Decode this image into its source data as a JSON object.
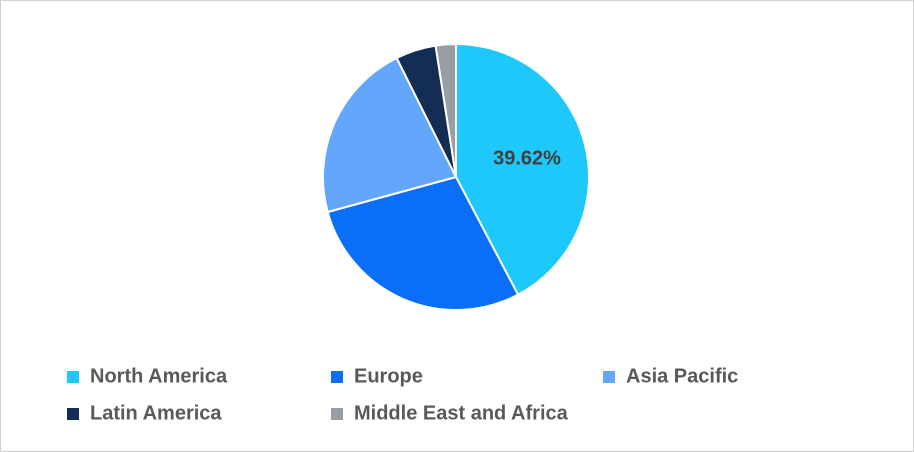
{
  "chart_data": {
    "type": "pie",
    "categories": [
      "North America",
      "Europe",
      "Asia Pacific",
      "Latin America",
      "Middle East and Africa"
    ],
    "values": [
      39.62,
      26.7,
      20.5,
      4.6,
      2.3
    ],
    "value_labels": [
      "39.62%",
      null,
      null,
      null,
      null
    ],
    "colors": [
      "#1ec8fa",
      "#0b6ef7",
      "#63a6fc",
      "#142d55",
      "#999ea6"
    ],
    "legend": "bottom"
  }
}
